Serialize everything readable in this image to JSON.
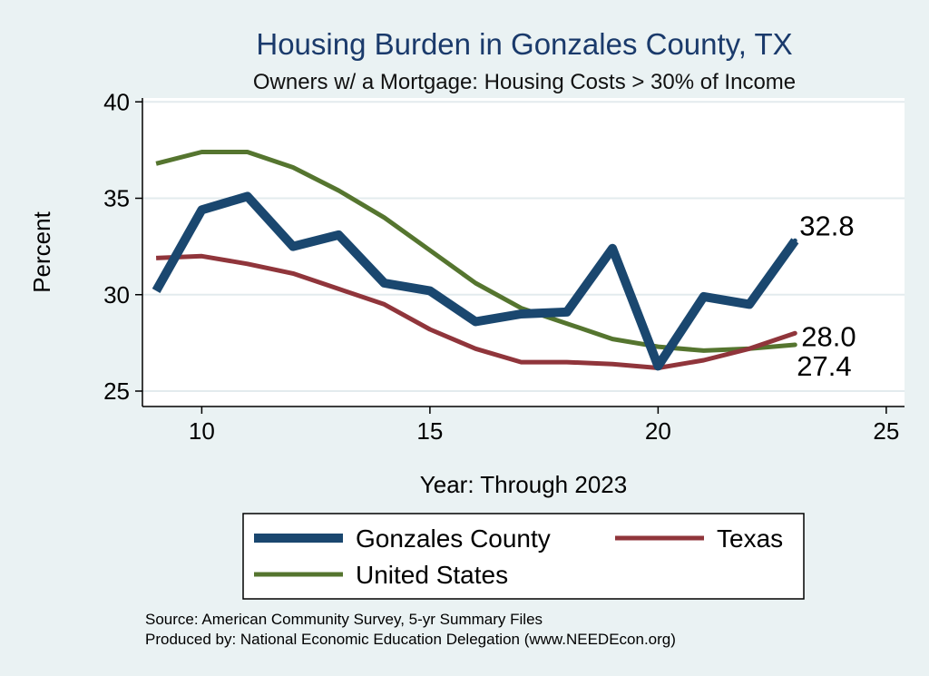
{
  "chart_data": {
    "type": "line",
    "title": "Housing Burden in Gonzales County, TX",
    "subtitle": "Owners w/ a Mortgage: Housing Costs > 30% of Income",
    "xlabel": "Year: Through 2023",
    "ylabel": "Percent",
    "xlim": [
      8.7,
      25.4
    ],
    "ylim": [
      24.2,
      40.2
    ],
    "xticks": [
      10,
      15,
      20,
      25
    ],
    "yticks": [
      25,
      30,
      35,
      40
    ],
    "x": [
      9,
      10,
      11,
      12,
      13,
      14,
      15,
      16,
      17,
      18,
      19,
      20,
      21,
      22,
      23
    ],
    "series": [
      {
        "name": "Gonzales County",
        "color": "#1a476f",
        "values": [
          30.2,
          34.4,
          35.1,
          32.5,
          33.1,
          30.6,
          30.2,
          28.6,
          29.0,
          29.1,
          32.4,
          26.3,
          29.9,
          29.5,
          32.8
        ],
        "end_label": "32.8"
      },
      {
        "name": "Texas",
        "color": "#90353b",
        "values": [
          31.9,
          32.0,
          31.6,
          31.1,
          30.3,
          29.5,
          28.2,
          27.2,
          26.5,
          26.5,
          26.4,
          26.2,
          26.6,
          27.2,
          28.0
        ],
        "end_label": "28.0"
      },
      {
        "name": "United States",
        "color": "#55752f",
        "values": [
          36.8,
          37.4,
          37.4,
          36.6,
          35.4,
          34.0,
          32.3,
          30.6,
          29.3,
          28.5,
          27.7,
          27.3,
          27.1,
          27.2,
          27.4
        ],
        "end_label": "27.4"
      }
    ],
    "legend": [
      "Gonzales County",
      "Texas",
      "United States"
    ],
    "legend_position": "bottom",
    "grid": true
  },
  "source": {
    "line1": "Source: American Community Survey, 5-yr Summary Files",
    "line2": "Produced by: National Economic Education Delegation (www.NEEDEcon.org)"
  }
}
